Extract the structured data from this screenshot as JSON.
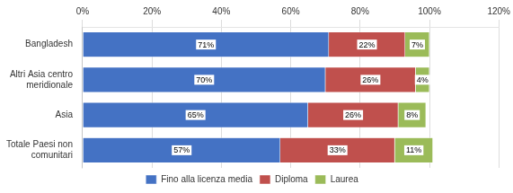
{
  "chart_data": {
    "type": "bar",
    "orientation": "horizontal",
    "stacked": true,
    "categories": [
      "Totale Paesi non\ncomunitari",
      "Asia",
      "Altri Asia centro\nmeridionale",
      "Bangladesh"
    ],
    "series": [
      {
        "name": "Fino alla licenza media",
        "color": "#4472C4",
        "values": [
          57,
          65,
          70,
          71
        ],
        "value_labels": [
          "57%",
          "65%",
          "70%",
          "71%"
        ]
      },
      {
        "name": "Diploma",
        "color": "#C0504D",
        "values": [
          33,
          26,
          26,
          22
        ],
        "value_labels": [
          "33%",
          "26%",
          "26%",
          "22%"
        ]
      },
      {
        "name": "Laurea",
        "color": "#9BBB59",
        "values": [
          11,
          8,
          4,
          7
        ],
        "value_labels": [
          "11%",
          "8%",
          "4%",
          "7%"
        ]
      }
    ],
    "xlim": [
      0,
      120
    ],
    "xticks": [
      {
        "value": 0,
        "label": "0%"
      },
      {
        "value": 20,
        "label": "20%"
      },
      {
        "value": 40,
        "label": "40%"
      },
      {
        "value": 60,
        "label": "60%"
      },
      {
        "value": 80,
        "label": "80%"
      },
      {
        "value": 100,
        "label": "100%"
      },
      {
        "value": 120,
        "label": "120%"
      }
    ],
    "grid": true,
    "legend": "bottom",
    "data_labels": true
  }
}
